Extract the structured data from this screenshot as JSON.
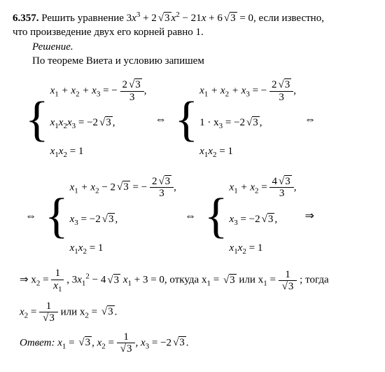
{
  "problem": {
    "number": "6.357.",
    "statement_a": "Решить уравнение  3",
    "statement_b": " + 2",
    "statement_c": " − 21",
    "statement_d": " + 6",
    "statement_e": " = 0,  если известно,",
    "statement_2": "что произведение двух его корней равно 1.",
    "x": "x",
    "p3": "3",
    "p2": "2",
    "sqrt3": "3"
  },
  "solution_label": "Решение.",
  "intro": "По теореме Виета и условию запишем",
  "sys": {
    "s1": "x",
    "s1i1": "1",
    "s1p": " + x",
    "s1i2": "2",
    "s1p2": " + x",
    "s1i3": "3",
    "eq1_rhs_a": " = − ",
    "frac1_num_a": "2",
    "frac1_num_rad": "3",
    "frac1_den": "3",
    "comma": ",",
    "s2a": "x",
    "s2i1": "1",
    "s2b": "x",
    "s2i2": "2",
    "s2c": "x",
    "s2i3": "3",
    "s2rhs": " = −2",
    "s2rad": "3",
    "s2end": ",",
    "s3a": "x",
    "s3i1": "1",
    "s3b": "x",
    "s3i2": "2",
    "s3rhs": " = 1",
    "iff": "⇔",
    "sys2_l2a": "1 · x",
    "sys2_l2i": "3",
    "sys2_l2b": " = −2",
    "sys2_l2rad": "3",
    "sys2_l2end": ",",
    "sys3_l1a": "x",
    "sys3_l1i1": "1",
    "sys3_l1b": " + x",
    "sys3_l1i2": "2",
    "sys3_l1c": " − 2",
    "sys3_l1rad": "3",
    "sys3_l1d": " = − ",
    "sys3_l2a": "x",
    "sys3_l2i": "3",
    "sys3_l2b": " = −2",
    "sys3_l2rad": "3",
    "sys3_l2end": ",",
    "sys4_l1a": "x",
    "sys4_l1i1": "1",
    "sys4_l1b": " + x",
    "sys4_l1i2": "2",
    "sys4_l1c": " = ",
    "frac2_num_a": "4",
    "frac2_num_rad": "3",
    "frac2_den": "3",
    "impl": "⇒"
  },
  "deriv": {
    "a": "⇒  x",
    "ai2": "2",
    "b": " = ",
    "frac_num": "1",
    "frac_den_x": "x",
    "frac_den_i": "1",
    "c": " ,  3",
    "ci": "1",
    "csup": "2",
    "d": " − 4",
    "drad": "3",
    "e": " x",
    "ei": "1",
    "f": " + 3 = 0,  откуда  x",
    "fi": "1",
    "g": " = ",
    "grad": "3",
    "h": "  или  x",
    "hi": "1",
    "i": " = ",
    "j": " ;   тогда",
    "l2a": "x",
    "l2i": "2",
    "l2b": " = ",
    "l2c": "  или  x",
    "l2i2": "2",
    "l2d": " = ",
    "l2rad": "3",
    "l2e": "."
  },
  "answer": {
    "label": "Ответ:",
    "a": "  x",
    "ai": "1",
    "b": " = ",
    "brad": "3",
    "c": ",  x",
    "ci": "2",
    "d": " = ",
    "frac_num": "1",
    "frac_rad": "3",
    "e": ",  x",
    "ei": "3",
    "f": " = −2",
    "frad": "3",
    "g": "."
  }
}
